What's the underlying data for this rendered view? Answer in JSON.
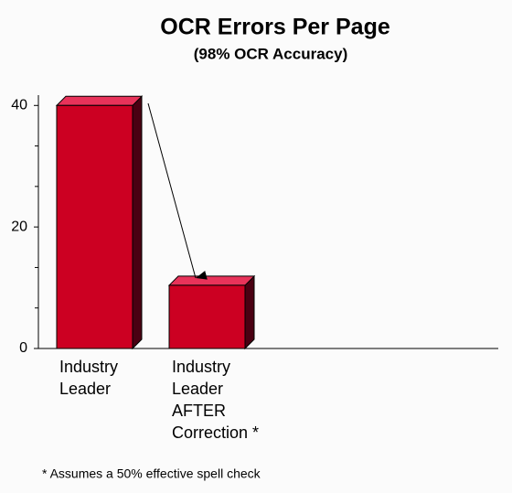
{
  "chart_data": {
    "type": "bar3d",
    "title": "OCR Errors Per Page",
    "subtitle": "(98% OCR Accuracy)",
    "categories": [
      [
        "Industry",
        "Leader"
      ],
      [
        "Industry",
        "Leader",
        "AFTER",
        "Correction *"
      ]
    ],
    "values": [
      40,
      10.4
    ],
    "color": "#cc0022",
    "ylim": [
      0,
      41.7
    ],
    "yticks": [
      0,
      20,
      40
    ],
    "yminorticks": [
      6.67,
      13.33,
      26.67,
      33.33
    ],
    "footnote": "*  Assumes a 50% effective spell check"
  }
}
